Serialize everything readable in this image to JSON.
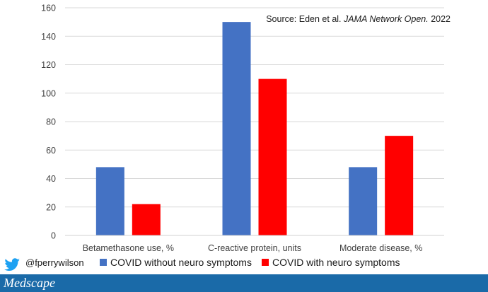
{
  "chart_data": {
    "type": "bar",
    "title": "",
    "xlabel": "",
    "ylabel": "",
    "categories": [
      "Betamethasone use, %",
      "C-reactive protein, units",
      "Moderate disease, %"
    ],
    "series": [
      {
        "name": "COVID without neuro symptoms",
        "color": "#4472c4",
        "values": [
          48,
          150,
          48
        ]
      },
      {
        "name": "COVID with neuro symptoms",
        "color": "#ff0000",
        "values": [
          22,
          110,
          70
        ]
      }
    ],
    "ylim": [
      0,
      160
    ],
    "yticks": [
      "0",
      "20",
      "40",
      "60",
      "80",
      "100",
      "120",
      "140",
      "160"
    ],
    "grid": true,
    "legend_position": "bottom",
    "annotation": {
      "prefix": "Source: Eden et al. ",
      "journal": "JAMA Network Open.",
      "suffix": " 2022"
    }
  },
  "footer": {
    "twitter_handle": "@fperrywilson",
    "twitter_icon": "twitter-bird-icon",
    "brand": "Medscape",
    "bar_color": "#1a6aa8"
  }
}
